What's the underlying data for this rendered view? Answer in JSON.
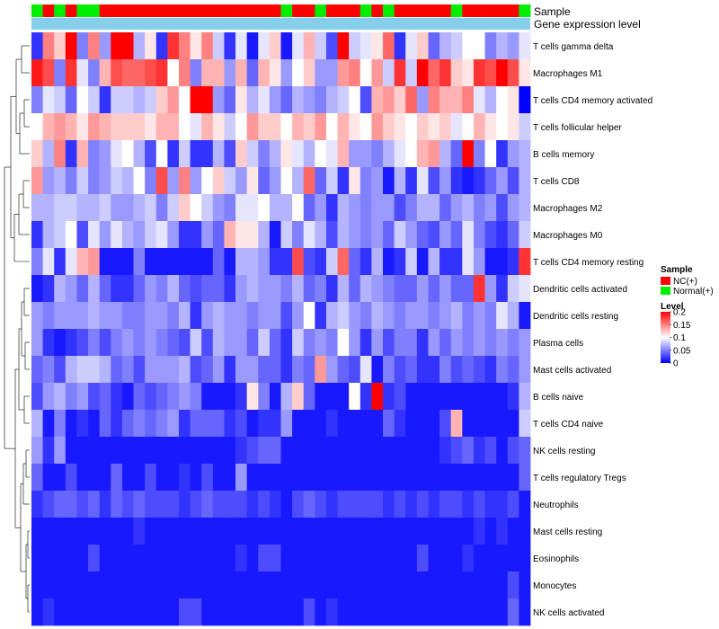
{
  "chart_data": {
    "type": "heatmap",
    "title": "",
    "annotation_tracks": [
      "Sample",
      "Gene expression level"
    ],
    "legend": {
      "sample_title": "Sample",
      "sample_entries": [
        {
          "label": "NC(+)",
          "color": "#ff0000"
        },
        {
          "label": "Normal(+)",
          "color": "#00ee00"
        }
      ],
      "level_title": "Level",
      "level_ticks": [
        "0.2",
        "0.15",
        "0.1",
        "0.05",
        "0"
      ],
      "level_tick_values": [
        0.2,
        0.15,
        0.1,
        0.05,
        0
      ],
      "range": [
        0,
        0.2
      ]
    },
    "colors": {
      "low": "#0000ff",
      "mid": "#ffffff",
      "high": "#ff0000",
      "nc": "#ff0000",
      "normal": "#00ee00",
      "expression_bar": "#87ceeb"
    },
    "sample_groups": [
      "N",
      "NC",
      "N",
      "NC",
      "N",
      "N",
      "NC",
      "NC",
      "NC",
      "NC",
      "NC",
      "NC",
      "NC",
      "NC",
      "NC",
      "NC",
      "NC",
      "NC",
      "NC",
      "NC",
      "NC",
      "NC",
      "N",
      "NC",
      "NC",
      "N",
      "NC",
      "NC",
      "NC",
      "N",
      "NC",
      "N",
      "NC",
      "NC",
      "NC",
      "NC",
      "NC",
      "N",
      "NC",
      "NC",
      "NC",
      "NC",
      "NC",
      "N"
    ],
    "rows": [
      {
        "label": "T cells gamma delta",
        "values": [
          0.02,
          0.15,
          0.12,
          0.2,
          0.05,
          0.15,
          0.06,
          0.2,
          0.2,
          0.07,
          0.11,
          0.02,
          0.18,
          0.15,
          0.11,
          0.15,
          0.08,
          0.02,
          0.09,
          0.01,
          0.09,
          0.12,
          0.01,
          0.09,
          0.13,
          0.08,
          0.03,
          0.2,
          0.08,
          0.09,
          0.11,
          0.16,
          0.02,
          0.09,
          0.12,
          0.04,
          0.07,
          0.08,
          0.1,
          0.1,
          0.05,
          0.07,
          0.06,
          0.09
        ]
      },
      {
        "label": "Macrophages M1",
        "values": [
          0.19,
          0.17,
          0.05,
          0.18,
          0.09,
          0.05,
          0.13,
          0.17,
          0.16,
          0.16,
          0.17,
          0.18,
          0.1,
          0.15,
          0.05,
          0.13,
          0.13,
          0.06,
          0.13,
          0.04,
          0.13,
          0.11,
          0.06,
          0.1,
          0.12,
          0.06,
          0.06,
          0.14,
          0.15,
          0.1,
          0.14,
          0.08,
          0.18,
          0.08,
          0.2,
          0.16,
          0.18,
          0.12,
          0.11,
          0.18,
          0.17,
          0.2,
          0.17,
          0.11
        ]
      },
      {
        "label": "T cells CD4 memory activated",
        "values": [
          0.05,
          0.09,
          0.08,
          0.04,
          0.1,
          0.08,
          0.02,
          0.08,
          0.08,
          0.07,
          0.08,
          0.12,
          0.14,
          0.1,
          0.2,
          0.2,
          0.06,
          0.04,
          0.11,
          0.07,
          0.09,
          0.06,
          0.04,
          0.07,
          0.06,
          0.05,
          0.07,
          0.08,
          0.1,
          0.03,
          0.13,
          0.14,
          0.12,
          0.16,
          0.06,
          0.15,
          0.13,
          0.13,
          0.15,
          0.09,
          0.07,
          0.1,
          0.11,
          0.0
        ]
      },
      {
        "label": "T cells follicular helper",
        "values": [
          0.1,
          0.13,
          0.14,
          0.13,
          0.11,
          0.14,
          0.13,
          0.12,
          0.12,
          0.12,
          0.11,
          0.13,
          0.13,
          0.1,
          0.09,
          0.13,
          0.11,
          0.08,
          0.1,
          0.14,
          0.12,
          0.12,
          0.1,
          0.13,
          0.12,
          0.14,
          0.1,
          0.13,
          0.11,
          0.1,
          0.14,
          0.12,
          0.11,
          0.1,
          0.12,
          0.11,
          0.12,
          0.09,
          0.1,
          0.13,
          0.11,
          0.1,
          0.11,
          0.08
        ]
      },
      {
        "label": "B cells memory",
        "values": [
          0.12,
          0.07,
          0.15,
          0.02,
          0.13,
          0.05,
          0.06,
          0.09,
          0.1,
          0.07,
          0.03,
          0.1,
          0.02,
          0.08,
          0.02,
          0.02,
          0.07,
          0.03,
          0.12,
          0.08,
          0.05,
          0.07,
          0.11,
          0.09,
          0.07,
          0.1,
          0.09,
          0.13,
          0.06,
          0.06,
          0.05,
          0.07,
          0.09,
          0.1,
          0.13,
          0.14,
          0.07,
          0.04,
          0.2,
          0.05,
          0.1,
          0.02,
          0.06,
          0.07
        ]
      },
      {
        "label": "T cells CD8",
        "values": [
          0.14,
          0.06,
          0.07,
          0.05,
          0.08,
          0.05,
          0.06,
          0.08,
          0.07,
          0.1,
          0.05,
          0.17,
          0.06,
          0.15,
          0.06,
          0.1,
          0.12,
          0.08,
          0.06,
          0.11,
          0.04,
          0.06,
          0.1,
          0.07,
          0.16,
          0.04,
          0.08,
          0.02,
          0.11,
          0.05,
          0.06,
          0.01,
          0.07,
          0.02,
          0.09,
          0.03,
          0.06,
          0.02,
          0.01,
          0.02,
          0.04,
          0.06,
          0.03,
          0.07
        ]
      },
      {
        "label": "Macrophages M2",
        "values": [
          0.07,
          0.07,
          0.08,
          0.08,
          0.07,
          0.07,
          0.08,
          0.06,
          0.06,
          0.07,
          0.08,
          0.05,
          0.08,
          0.12,
          0.1,
          0.08,
          0.06,
          0.05,
          0.09,
          0.09,
          0.1,
          0.07,
          0.07,
          0.1,
          0.04,
          0.06,
          0.02,
          0.07,
          0.06,
          0.05,
          0.06,
          0.06,
          0.03,
          0.05,
          0.07,
          0.07,
          0.04,
          0.06,
          0.07,
          0.05,
          0.06,
          0.03,
          0.06,
          0.07
        ]
      },
      {
        "label": "Macrophages M0",
        "values": [
          0.02,
          0.07,
          0.08,
          0.1,
          0.03,
          0.09,
          0.06,
          0.09,
          0.07,
          0.06,
          0.08,
          0.09,
          0.06,
          0.02,
          0.02,
          0.06,
          0.04,
          0.13,
          0.11,
          0.11,
          0.07,
          0.01,
          0.08,
          0.05,
          0.09,
          0.07,
          0.03,
          0.07,
          0.06,
          0.05,
          0.06,
          0.04,
          0.08,
          0.06,
          0.04,
          0.03,
          0.06,
          0.04,
          0.09,
          0.05,
          0.03,
          0.02,
          0.04,
          0.08
        ]
      },
      {
        "label": "T cells CD4 memory resting",
        "values": [
          0.05,
          0.09,
          0.02,
          0.09,
          0.13,
          0.14,
          0.01,
          0.01,
          0.01,
          0.05,
          0.01,
          0.01,
          0.01,
          0.01,
          0.01,
          0.01,
          0.04,
          0.01,
          0.07,
          0.07,
          0.06,
          0.02,
          0.02,
          0.17,
          0.03,
          0.02,
          0.08,
          0.16,
          0.04,
          0.02,
          0.07,
          0.01,
          0.02,
          0.08,
          0.01,
          0.07,
          0.02,
          0.02,
          0.09,
          0.06,
          0.01,
          0.01,
          0.02,
          0.18
        ]
      },
      {
        "label": "Dendritic cells activated",
        "values": [
          0.01,
          0.02,
          0.07,
          0.06,
          0.04,
          0.07,
          0.04,
          0.02,
          0.02,
          0.04,
          0.06,
          0.05,
          0.07,
          0.04,
          0.03,
          0.04,
          0.04,
          0.02,
          0.06,
          0.07,
          0.06,
          0.06,
          0.05,
          0.07,
          0.04,
          0.05,
          0.02,
          0.07,
          0.04,
          0.07,
          0.06,
          0.05,
          0.04,
          0.04,
          0.06,
          0.04,
          0.06,
          0.04,
          0.04,
          0.18,
          0.06,
          0.02,
          0.08,
          0.09
        ]
      },
      {
        "label": "Dendritic cells resting",
        "values": [
          0.06,
          0.05,
          0.06,
          0.06,
          0.06,
          0.07,
          0.06,
          0.06,
          0.05,
          0.05,
          0.06,
          0.06,
          0.05,
          0.07,
          0.02,
          0.06,
          0.07,
          0.06,
          0.06,
          0.05,
          0.06,
          0.06,
          0.03,
          0.06,
          0.1,
          0.02,
          0.07,
          0.08,
          0.06,
          0.05,
          0.07,
          0.06,
          0.05,
          0.06,
          0.06,
          0.05,
          0.06,
          0.07,
          0.05,
          0.06,
          0.05,
          0.09,
          0.07,
          0.01
        ]
      },
      {
        "label": "Plasma cells",
        "values": [
          0.06,
          0.02,
          0.01,
          0.02,
          0.03,
          0.05,
          0.03,
          0.05,
          0.06,
          0.05,
          0.06,
          0.05,
          0.04,
          0.03,
          0.08,
          0.03,
          0.07,
          0.06,
          0.06,
          0.04,
          0.08,
          0.04,
          0.02,
          0.08,
          0.05,
          0.06,
          0.05,
          0.1,
          0.06,
          0.02,
          0.06,
          0.03,
          0.05,
          0.05,
          0.02,
          0.06,
          0.04,
          0.06,
          0.05,
          0.06,
          0.05,
          0.06,
          0.05,
          0.06
        ]
      },
      {
        "label": "Mast cells activated",
        "values": [
          0.04,
          0.05,
          0.03,
          0.07,
          0.08,
          0.08,
          0.07,
          0.04,
          0.05,
          0.03,
          0.06,
          0.06,
          0.06,
          0.07,
          0.03,
          0.04,
          0.06,
          0.02,
          0.06,
          0.06,
          0.04,
          0.04,
          0.02,
          0.05,
          0.04,
          0.14,
          0.06,
          0.04,
          0.03,
          0.09,
          0.01,
          0.05,
          0.03,
          0.04,
          0.02,
          0.02,
          0.05,
          0.03,
          0.04,
          0.03,
          0.02,
          0.05,
          0.04,
          0.06
        ]
      },
      {
        "label": "B cells naive",
        "values": [
          0.03,
          0.06,
          0.07,
          0.05,
          0.06,
          0.03,
          0.04,
          0.02,
          0.01,
          0.04,
          0.03,
          0.04,
          0.05,
          0.06,
          0.05,
          0.01,
          0.01,
          0.01,
          0.02,
          0.11,
          0.05,
          0.01,
          0.07,
          0.12,
          0.04,
          0.01,
          0.01,
          0.01,
          0.1,
          0.02,
          0.2,
          0.02,
          0.03,
          0.01,
          0.01,
          0.01,
          0.01,
          0.01,
          0.01,
          0.01,
          0.01,
          0.01,
          0.02,
          0.07
        ]
      },
      {
        "label": "T cells CD4 naive",
        "values": [
          0.07,
          0.01,
          0.05,
          0.01,
          0.02,
          0.01,
          0.04,
          0.02,
          0.04,
          0.05,
          0.04,
          0.05,
          0.06,
          0.02,
          0.04,
          0.04,
          0.04,
          0.02,
          0.03,
          0.01,
          0.02,
          0.02,
          0.06,
          0.01,
          0.01,
          0.01,
          0.02,
          0.01,
          0.01,
          0.01,
          0.01,
          0.04,
          0.02,
          0.01,
          0.01,
          0.01,
          0.03,
          0.13,
          0.01,
          0.01,
          0.01,
          0.01,
          0.01,
          0.08
        ]
      },
      {
        "label": "NK cells resting",
        "values": [
          0.06,
          0.02,
          0.06,
          0.01,
          0.01,
          0.01,
          0.01,
          0.01,
          0.01,
          0.01,
          0.01,
          0.01,
          0.01,
          0.01,
          0.01,
          0.01,
          0.01,
          0.01,
          0.02,
          0.03,
          0.04,
          0.04,
          0.01,
          0.01,
          0.01,
          0.01,
          0.01,
          0.01,
          0.01,
          0.01,
          0.01,
          0.01,
          0.01,
          0.01,
          0.01,
          0.01,
          0.02,
          0.03,
          0.04,
          0.02,
          0.03,
          0.01,
          0.03,
          0.04
        ]
      },
      {
        "label": "T cells regulatory  Tregs",
        "values": [
          0.04,
          0.01,
          0.01,
          0.03,
          0.01,
          0.01,
          0.01,
          0.04,
          0.01,
          0.01,
          0.03,
          0.01,
          0.01,
          0.02,
          0.01,
          0.03,
          0.01,
          0.01,
          0.06,
          0.01,
          0.01,
          0.01,
          0.01,
          0.01,
          0.01,
          0.01,
          0.01,
          0.01,
          0.01,
          0.01,
          0.01,
          0.01,
          0.01,
          0.01,
          0.01,
          0.01,
          0.01,
          0.01,
          0.01,
          0.01,
          0.01,
          0.01,
          0.01,
          0.04
        ]
      },
      {
        "label": "Neutrophils",
        "values": [
          0.02,
          0.03,
          0.04,
          0.04,
          0.03,
          0.04,
          0.02,
          0.04,
          0.03,
          0.04,
          0.03,
          0.03,
          0.03,
          0.02,
          0.03,
          0.04,
          0.03,
          0.03,
          0.03,
          0.02,
          0.03,
          0.02,
          0.01,
          0.03,
          0.04,
          0.03,
          0.02,
          0.03,
          0.03,
          0.03,
          0.03,
          0.02,
          0.03,
          0.02,
          0.03,
          0.02,
          0.03,
          0.03,
          0.02,
          0.03,
          0.02,
          0.02,
          0.03,
          0.01
        ]
      },
      {
        "label": "Mast cells resting",
        "values": [
          0.01,
          0.01,
          0.01,
          0.01,
          0.01,
          0.01,
          0.01,
          0.01,
          0.01,
          0.02,
          0.01,
          0.01,
          0.01,
          0.01,
          0.01,
          0.01,
          0.01,
          0.01,
          0.01,
          0.01,
          0.01,
          0.01,
          0.01,
          0.01,
          0.01,
          0.01,
          0.01,
          0.01,
          0.01,
          0.01,
          0.01,
          0.01,
          0.01,
          0.01,
          0.01,
          0.01,
          0.01,
          0.01,
          0.01,
          0.02,
          0.01,
          0.02,
          0.01,
          0.01
        ]
      },
      {
        "label": "Eosinophils",
        "values": [
          0.01,
          0.01,
          0.01,
          0.01,
          0.01,
          0.03,
          0.01,
          0.01,
          0.01,
          0.01,
          0.01,
          0.01,
          0.01,
          0.01,
          0.01,
          0.01,
          0.01,
          0.01,
          0.02,
          0.01,
          0.03,
          0.03,
          0.01,
          0.01,
          0.01,
          0.01,
          0.01,
          0.01,
          0.01,
          0.01,
          0.01,
          0.01,
          0.01,
          0.01,
          0.03,
          0.01,
          0.01,
          0.01,
          0.02,
          0.01,
          0.01,
          0.01,
          0.01,
          0.01
        ]
      },
      {
        "label": "Monocytes",
        "values": [
          0.01,
          0.01,
          0.01,
          0.01,
          0.01,
          0.01,
          0.01,
          0.01,
          0.01,
          0.01,
          0.01,
          0.01,
          0.01,
          0.01,
          0.01,
          0.01,
          0.01,
          0.01,
          0.01,
          0.01,
          0.01,
          0.01,
          0.01,
          0.01,
          0.01,
          0.01,
          0.01,
          0.01,
          0.01,
          0.01,
          0.01,
          0.01,
          0.01,
          0.01,
          0.01,
          0.01,
          0.01,
          0.01,
          0.01,
          0.01,
          0.01,
          0.01,
          0.03,
          0.01
        ]
      },
      {
        "label": "NK cells activated",
        "values": [
          0.01,
          0.02,
          0.01,
          0.01,
          0.01,
          0.01,
          0.01,
          0.01,
          0.01,
          0.01,
          0.01,
          0.01,
          0.01,
          0.03,
          0.03,
          0.01,
          0.01,
          0.01,
          0.01,
          0.01,
          0.01,
          0.01,
          0.01,
          0.01,
          0.03,
          0.01,
          0.02,
          0.01,
          0.01,
          0.01,
          0.01,
          0.01,
          0.01,
          0.01,
          0.01,
          0.01,
          0.01,
          0.01,
          0.01,
          0.01,
          0.01,
          0.01,
          0.04,
          0.01
        ]
      }
    ]
  }
}
